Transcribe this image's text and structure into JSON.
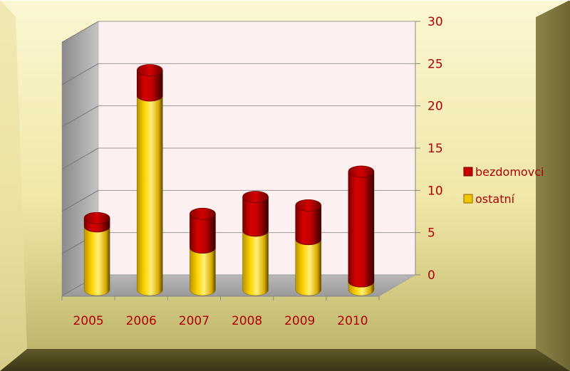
{
  "chart_data": {
    "type": "bar",
    "stacked": true,
    "categories": [
      "2005",
      "2006",
      "2007",
      "2008",
      "2009",
      "2010"
    ],
    "series": [
      {
        "name": "ostatní",
        "color": "#f2c400",
        "values": [
          7.5,
          23,
          5,
          7,
          6,
          1
        ]
      },
      {
        "name": "bezdomovci",
        "color": "#c80000",
        "values": [
          1,
          3,
          4,
          4,
          4,
          13
        ]
      }
    ],
    "ylim": [
      0,
      30
    ],
    "yticks": [
      0,
      5,
      10,
      15,
      20,
      25,
      30
    ],
    "grid": true,
    "legend_position": "right",
    "frame_color": "#b9b06a",
    "wall_color": "#fdf0f0",
    "label_color": "#b00000"
  }
}
